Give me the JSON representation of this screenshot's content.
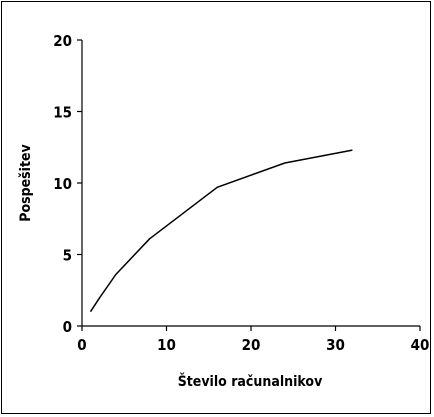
{
  "chart_data": {
    "type": "line",
    "title": "",
    "xlabel": "Število računalnikov",
    "ylabel": "Pospešitev",
    "xlim": [
      0,
      40
    ],
    "ylim": [
      0,
      20
    ],
    "xticks": [
      0,
      10,
      20,
      30,
      40
    ],
    "yticks": [
      0,
      5,
      10,
      15,
      20
    ],
    "grid": false,
    "series": [
      {
        "x": [
          1,
          2,
          4,
          8,
          16,
          24,
          32
        ],
        "y": [
          1.0,
          1.9,
          3.6,
          6.1,
          9.7,
          11.4,
          12.3
        ],
        "color": "#000000"
      }
    ]
  }
}
